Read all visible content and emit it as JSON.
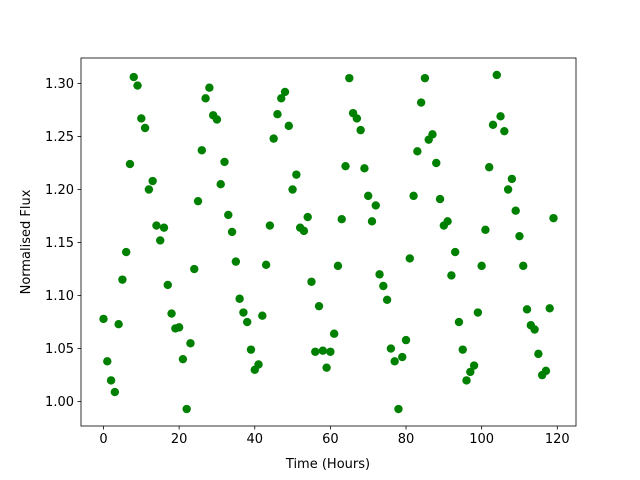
{
  "chart_data": {
    "type": "scatter",
    "xlabel": "Time (Hours)",
    "ylabel": "Normalised Flux",
    "color": "#008000",
    "x": [
      0,
      1,
      2,
      3,
      4,
      5,
      6,
      7,
      8,
      9,
      10,
      11,
      12,
      13,
      14,
      15,
      16,
      17,
      18,
      19,
      20,
      21,
      22,
      23,
      24,
      25,
      26,
      27,
      28,
      29,
      30,
      31,
      32,
      33,
      34,
      35,
      36,
      37,
      38,
      39,
      40,
      41,
      42,
      43,
      44,
      45,
      46,
      47,
      48,
      49,
      50,
      51,
      52,
      53,
      54,
      55,
      56,
      57,
      58,
      59,
      60,
      61,
      62,
      63,
      64,
      65,
      66,
      67,
      68,
      69,
      70,
      71,
      72,
      73,
      74,
      75,
      76,
      77,
      78,
      79,
      80,
      81,
      82,
      83,
      84,
      85,
      86,
      87,
      88,
      89,
      90,
      91,
      92,
      93,
      94,
      95,
      96,
      97,
      98,
      99,
      100,
      101,
      102,
      103,
      104,
      105,
      106,
      107,
      108,
      109,
      110,
      111,
      112,
      113,
      114,
      115,
      116,
      117,
      118,
      119
    ],
    "values": [
      1.078,
      1.038,
      1.02,
      1.009,
      1.073,
      1.115,
      1.141,
      1.224,
      1.306,
      1.298,
      1.267,
      1.258,
      1.2,
      1.208,
      1.166,
      1.152,
      1.164,
      1.11,
      1.083,
      1.069,
      1.07,
      1.04,
      0.993,
      1.055,
      1.125,
      1.189,
      1.237,
      1.286,
      1.296,
      1.27,
      1.266,
      1.205,
      1.226,
      1.176,
      1.16,
      1.132,
      1.097,
      1.084,
      1.075,
      1.049,
      1.03,
      1.035,
      1.081,
      1.129,
      1.166,
      1.248,
      1.271,
      1.286,
      1.292,
      1.26,
      1.2,
      1.214,
      1.164,
      1.161,
      1.174,
      1.113,
      1.047,
      1.09,
      1.048,
      1.032,
      1.047,
      1.064,
      1.128,
      1.172,
      1.222,
      1.305,
      1.272,
      1.267,
      1.256,
      1.22,
      1.194,
      1.17,
      1.185,
      1.12,
      1.109,
      1.096,
      1.05,
      1.038,
      0.993,
      1.042,
      1.058,
      1.135,
      1.194,
      1.236,
      1.282,
      1.305,
      1.247,
      1.252,
      1.225,
      1.191,
      1.166,
      1.17,
      1.119,
      1.141,
      1.075,
      1.049,
      1.02,
      1.028,
      1.034,
      1.084,
      1.128,
      1.162,
      1.221,
      1.261,
      1.308,
      1.269,
      1.255,
      1.2,
      1.21,
      1.18,
      1.156,
      1.128,
      1.087,
      1.072,
      1.068,
      1.045,
      1.025,
      1.029,
      1.088,
      1.173
    ],
    "xlim": [
      -5.95,
      124.95
    ],
    "xticks": [
      0,
      20,
      40,
      60,
      80,
      100,
      120
    ],
    "ylim": [
      0.977,
      1.324
    ],
    "yticks": [
      {
        "value": 1,
        "label": "1.00"
      },
      1.05,
      {
        "value": 1.1,
        "label": "1.10"
      },
      1.15,
      {
        "value": 1.2,
        "label": "1.20"
      },
      1.25,
      {
        "value": 1.3,
        "label": "1.30"
      }
    ]
  }
}
